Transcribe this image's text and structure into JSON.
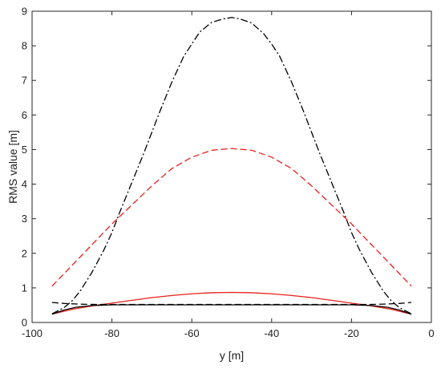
{
  "chart_data": {
    "type": "line",
    "title": "",
    "xlabel": "y [m]",
    "ylabel": "RMS value [m]",
    "xlim": [
      -100,
      0
    ],
    "ylim": [
      0,
      9
    ],
    "xticks": [
      -100,
      -80,
      -60,
      -40,
      -20,
      0
    ],
    "yticks": [
      0,
      1,
      2,
      3,
      4,
      5,
      6,
      7,
      8,
      9
    ],
    "xtick_labels": [
      "-100",
      "-80",
      "-60",
      "-40",
      "-20",
      "0"
    ],
    "ytick_labels": [
      "0",
      "1",
      "2",
      "3",
      "4",
      "5",
      "6",
      "7",
      "8",
      "9"
    ],
    "grid": false,
    "legend": "none",
    "series": [
      {
        "color": "#000000",
        "style": "dashdot",
        "points": [
          [
            -95,
            0.25
          ],
          [
            -92,
            0.43
          ],
          [
            -90,
            0.62
          ],
          [
            -88,
            0.9
          ],
          [
            -85,
            1.45
          ],
          [
            -82,
            2.1
          ],
          [
            -80,
            2.6
          ],
          [
            -78,
            3.2
          ],
          [
            -75,
            4.05
          ],
          [
            -72,
            4.9
          ],
          [
            -70,
            5.5
          ],
          [
            -68,
            6.1
          ],
          [
            -65,
            6.95
          ],
          [
            -62,
            7.7
          ],
          [
            -60,
            8.05
          ],
          [
            -58,
            8.4
          ],
          [
            -55,
            8.68
          ],
          [
            -52,
            8.78
          ],
          [
            -50,
            8.82
          ],
          [
            -48,
            8.78
          ],
          [
            -45,
            8.66
          ],
          [
            -42,
            8.35
          ],
          [
            -40,
            8.05
          ],
          [
            -38,
            7.7
          ],
          [
            -35,
            6.95
          ],
          [
            -32,
            6.1
          ],
          [
            -30,
            5.5
          ],
          [
            -28,
            4.9
          ],
          [
            -25,
            4.05
          ],
          [
            -22,
            3.2
          ],
          [
            -20,
            2.6
          ],
          [
            -18,
            2.1
          ],
          [
            -15,
            1.45
          ],
          [
            -12,
            0.9
          ],
          [
            -10,
            0.62
          ],
          [
            -8,
            0.43
          ],
          [
            -5,
            0.25
          ]
        ]
      },
      {
        "color": "#e8201b",
        "style": "dashed",
        "points": [
          [
            -95,
            1.05
          ],
          [
            -90,
            1.65
          ],
          [
            -85,
            2.25
          ],
          [
            -80,
            2.85
          ],
          [
            -75,
            3.4
          ],
          [
            -70,
            3.95
          ],
          [
            -65,
            4.45
          ],
          [
            -60,
            4.78
          ],
          [
            -55,
            4.98
          ],
          [
            -50,
            5.03
          ],
          [
            -45,
            4.98
          ],
          [
            -40,
            4.78
          ],
          [
            -35,
            4.45
          ],
          [
            -30,
            3.95
          ],
          [
            -25,
            3.4
          ],
          [
            -20,
            2.85
          ],
          [
            -15,
            2.25
          ],
          [
            -10,
            1.65
          ],
          [
            -5,
            1.05
          ]
        ]
      },
      {
        "color": "#e8201b",
        "style": "solid",
        "points": [
          [
            -95,
            0.24
          ],
          [
            -90,
            0.38
          ],
          [
            -85,
            0.48
          ],
          [
            -80,
            0.56
          ],
          [
            -75,
            0.64
          ],
          [
            -70,
            0.72
          ],
          [
            -65,
            0.78
          ],
          [
            -60,
            0.83
          ],
          [
            -55,
            0.86
          ],
          [
            -50,
            0.87
          ],
          [
            -45,
            0.86
          ],
          [
            -40,
            0.83
          ],
          [
            -35,
            0.78
          ],
          [
            -30,
            0.72
          ],
          [
            -25,
            0.64
          ],
          [
            -20,
            0.56
          ],
          [
            -15,
            0.48
          ],
          [
            -10,
            0.38
          ],
          [
            -5,
            0.24
          ]
        ]
      },
      {
        "color": "#000000",
        "style": "solid",
        "points": [
          [
            -95,
            0.24
          ],
          [
            -92,
            0.36
          ],
          [
            -89,
            0.44
          ],
          [
            -85,
            0.49
          ],
          [
            -80,
            0.51
          ],
          [
            -70,
            0.51
          ],
          [
            -60,
            0.51
          ],
          [
            -50,
            0.51
          ],
          [
            -40,
            0.51
          ],
          [
            -30,
            0.51
          ],
          [
            -20,
            0.51
          ],
          [
            -15,
            0.49
          ],
          [
            -11,
            0.44
          ],
          [
            -8,
            0.36
          ],
          [
            -5,
            0.24
          ]
        ]
      },
      {
        "color": "#000000",
        "style": "dashed",
        "points": [
          [
            -95,
            0.58
          ],
          [
            -92,
            0.55
          ],
          [
            -88,
            0.53
          ],
          [
            -84,
            0.52
          ],
          [
            -80,
            0.52
          ],
          [
            -70,
            0.52
          ],
          [
            -60,
            0.52
          ],
          [
            -50,
            0.52
          ],
          [
            -40,
            0.52
          ],
          [
            -30,
            0.52
          ],
          [
            -20,
            0.52
          ],
          [
            -16,
            0.52
          ],
          [
            -12,
            0.53
          ],
          [
            -8,
            0.55
          ],
          [
            -5,
            0.58
          ]
        ]
      }
    ]
  }
}
